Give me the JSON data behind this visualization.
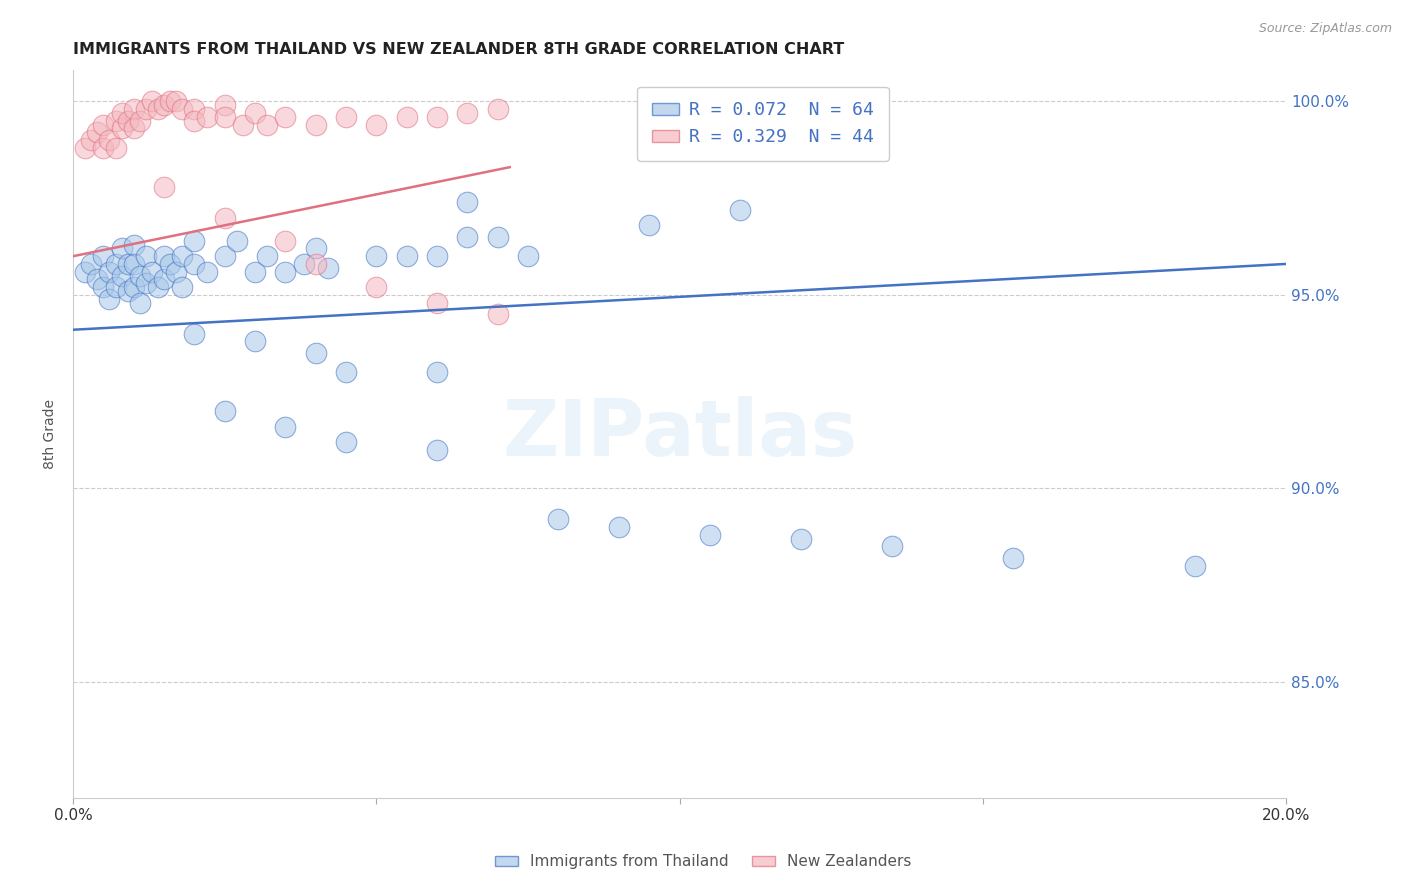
{
  "title": "IMMIGRANTS FROM THAILAND VS NEW ZEALANDER 8TH GRADE CORRELATION CHART",
  "source": "Source: ZipAtlas.com",
  "ylabel": "8th Grade",
  "xlim": [
    0.0,
    0.2
  ],
  "ylim": [
    0.82,
    1.008
  ],
  "yticks": [
    0.85,
    0.9,
    0.95,
    1.0
  ],
  "ytick_labels": [
    "85.0%",
    "90.0%",
    "95.0%",
    "100.0%"
  ],
  "xticks": [
    0.0,
    0.05,
    0.1,
    0.15,
    0.2
  ],
  "xtick_labels": [
    "0.0%",
    "",
    "",
    "",
    "20.0%"
  ],
  "legend_r_labels": [
    "R = 0.072  N = 64",
    "R = 0.329  N = 44"
  ],
  "legend_series_labels": [
    "Immigrants from Thailand",
    "New Zealanders"
  ],
  "blue_color": "#a8c8e8",
  "blue_edge_color": "#4472c4",
  "pink_color": "#f4b8c0",
  "pink_edge_color": "#e07080",
  "blue_line_color": "#4472c4",
  "pink_line_color": "#e07080",
  "watermark": "ZIPatlas",
  "blue_x": [
    0.002,
    0.003,
    0.004,
    0.005,
    0.005,
    0.006,
    0.006,
    0.007,
    0.007,
    0.008,
    0.008,
    0.009,
    0.009,
    0.01,
    0.01,
    0.01,
    0.011,
    0.011,
    0.012,
    0.012,
    0.013,
    0.014,
    0.015,
    0.015,
    0.016,
    0.017,
    0.018,
    0.018,
    0.02,
    0.02,
    0.022,
    0.025,
    0.027,
    0.03,
    0.032,
    0.035,
    0.038,
    0.04,
    0.042,
    0.05,
    0.055,
    0.06,
    0.065,
    0.07,
    0.075,
    0.02,
    0.03,
    0.04,
    0.045,
    0.06,
    0.025,
    0.035,
    0.045,
    0.06,
    0.08,
    0.09,
    0.105,
    0.12,
    0.135,
    0.155,
    0.185,
    0.065,
    0.095,
    0.11
  ],
  "blue_y": [
    0.956,
    0.958,
    0.954,
    0.96,
    0.952,
    0.956,
    0.949,
    0.958,
    0.952,
    0.962,
    0.955,
    0.958,
    0.951,
    0.963,
    0.958,
    0.952,
    0.955,
    0.948,
    0.96,
    0.953,
    0.956,
    0.952,
    0.96,
    0.954,
    0.958,
    0.956,
    0.96,
    0.952,
    0.964,
    0.958,
    0.956,
    0.96,
    0.964,
    0.956,
    0.96,
    0.956,
    0.958,
    0.962,
    0.957,
    0.96,
    0.96,
    0.96,
    0.965,
    0.965,
    0.96,
    0.94,
    0.938,
    0.935,
    0.93,
    0.93,
    0.92,
    0.916,
    0.912,
    0.91,
    0.892,
    0.89,
    0.888,
    0.887,
    0.885,
    0.882,
    0.88,
    0.974,
    0.968,
    0.972
  ],
  "pink_x": [
    0.002,
    0.003,
    0.004,
    0.005,
    0.005,
    0.006,
    0.007,
    0.007,
    0.008,
    0.008,
    0.009,
    0.01,
    0.01,
    0.011,
    0.012,
    0.013,
    0.014,
    0.015,
    0.016,
    0.017,
    0.018,
    0.02,
    0.02,
    0.022,
    0.025,
    0.025,
    0.028,
    0.03,
    0.032,
    0.035,
    0.04,
    0.045,
    0.05,
    0.055,
    0.06,
    0.065,
    0.07,
    0.015,
    0.025,
    0.035,
    0.04,
    0.05,
    0.06,
    0.07
  ],
  "pink_y": [
    0.988,
    0.99,
    0.992,
    0.994,
    0.988,
    0.99,
    0.988,
    0.995,
    0.993,
    0.997,
    0.995,
    0.998,
    0.993,
    0.995,
    0.998,
    1.0,
    0.998,
    0.999,
    1.0,
    1.0,
    0.998,
    0.998,
    0.995,
    0.996,
    0.999,
    0.996,
    0.994,
    0.997,
    0.994,
    0.996,
    0.994,
    0.996,
    0.994,
    0.996,
    0.996,
    0.997,
    0.998,
    0.978,
    0.97,
    0.964,
    0.958,
    0.952,
    0.948,
    0.945
  ],
  "blue_line": {
    "x0": 0.0,
    "x1": 0.2,
    "y0": 0.941,
    "y1": 0.958
  },
  "pink_line": {
    "x0": 0.0,
    "x1": 0.072,
    "y0": 0.96,
    "y1": 0.983
  }
}
